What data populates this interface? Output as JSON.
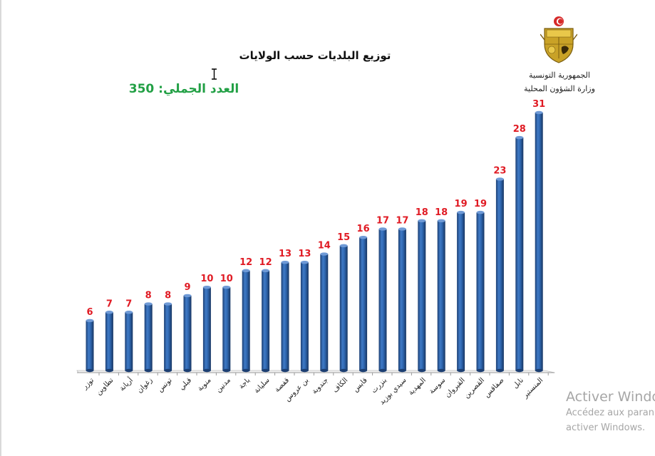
{
  "chart_data": {
    "type": "bar",
    "title": "توزيع البلديات حسب الولايات",
    "annotation": "العدد الجملي: 350",
    "categories": [
      "توزر",
      "تطاوين",
      "أريانة",
      "زغوان",
      "تونس",
      "قبلي",
      "منوبة",
      "مدنين",
      "باجة",
      "سليانة",
      "قفصة",
      "بن عروس",
      "جندوبة",
      "الكاف",
      "قابس",
      "بنزرت",
      "سيدي بوزيد",
      "المهدية",
      "سوسة",
      "القيروان",
      "القصرين",
      "صفاقس",
      "نابل",
      "المنستير"
    ],
    "values": [
      6,
      7,
      7,
      8,
      8,
      9,
      10,
      10,
      12,
      12,
      13,
      13,
      14,
      15,
      16,
      17,
      17,
      18,
      18,
      19,
      19,
      23,
      28,
      31
    ],
    "ylim": [
      0,
      31
    ],
    "grid": false,
    "legend": "none",
    "xlabel": "",
    "ylabel": "",
    "colors": {
      "bar": "#2f67b0",
      "bar_dark": "#1c3f73",
      "bar_light": "#6f9ad6",
      "value_label": "#e01b24",
      "annotation": "#22a045",
      "title": "#111111"
    }
  },
  "header": {
    "country": "الجمهورية التونسية",
    "ministry": "وزارة الشؤون المحلية",
    "emblem_icon": "tunisia-coat-of-arms-icon"
  },
  "watermark": {
    "line1": "Activer Windo",
    "line2": "Accédez aux paran",
    "line3": "activer Windows."
  }
}
